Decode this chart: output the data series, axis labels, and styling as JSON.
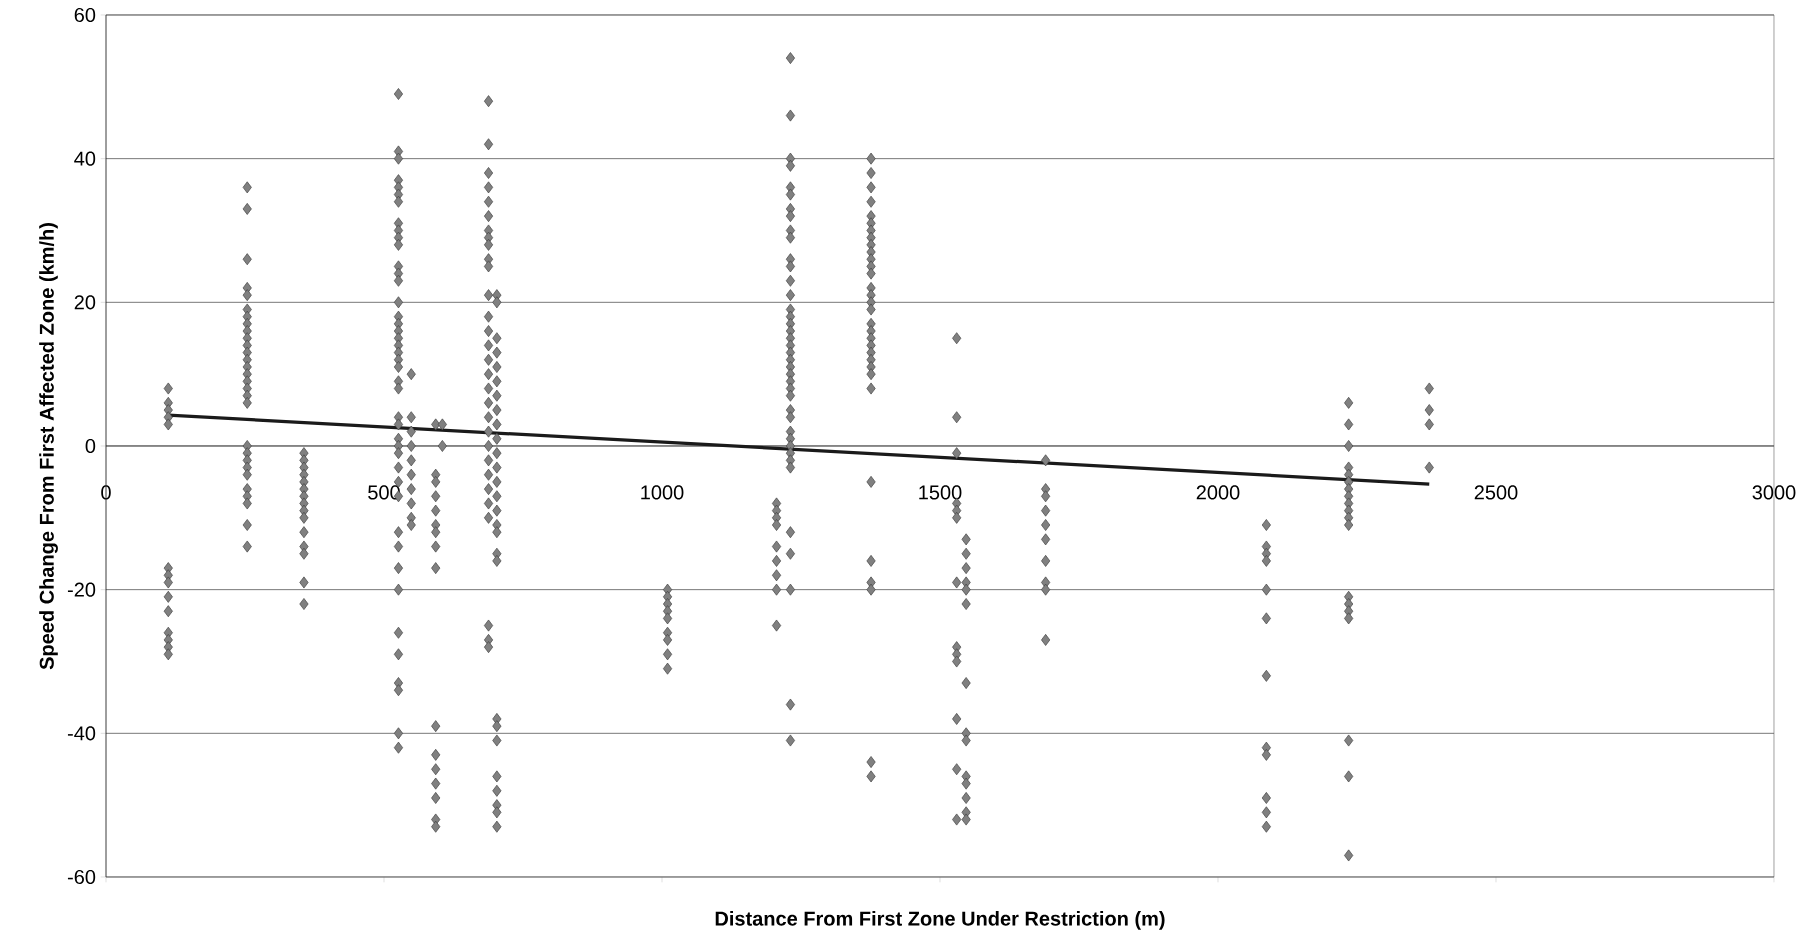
{
  "chart_data": {
    "type": "scatter",
    "xlabel": "Distance From First Zone Under Restriction (m)",
    "ylabel": "Speed Change From First Affected Zone (km/h)",
    "xlim": [
      0,
      3000
    ],
    "ylim": [
      -60,
      60
    ],
    "xticks": [
      0,
      500,
      1000,
      1500,
      2000,
      2500,
      3000
    ],
    "yticks": [
      -60,
      -40,
      -20,
      0,
      20,
      40,
      60
    ],
    "grid": "y",
    "marker": "diamond",
    "series": [
      {
        "color": "#808080",
        "x": [
          112,
          112,
          112,
          112,
          112,
          112,
          112,
          112,
          112,
          112,
          112,
          112,
          112,
          112
        ],
        "values": [
          8,
          6,
          5,
          4,
          3,
          -17,
          -18,
          -19,
          -21,
          -23,
          -26,
          -27,
          -28,
          -29
        ]
      },
      {
        "color": "#808080",
        "x": [
          254,
          254,
          254,
          254,
          254,
          254,
          254,
          254,
          254,
          254,
          254,
          254,
          254,
          254,
          254,
          254,
          254,
          254,
          254,
          254,
          254,
          254,
          254,
          254,
          254,
          254,
          254,
          254,
          254
        ],
        "values": [
          36,
          33,
          26,
          22,
          21,
          19,
          18,
          17,
          16,
          15,
          14,
          13,
          12,
          11,
          10,
          9,
          8,
          7,
          6,
          0,
          -1,
          -2,
          -3,
          -4,
          -6,
          -7,
          -8,
          -11,
          -14
        ]
      },
      {
        "color": "#808080",
        "x": [
          356,
          356,
          356,
          356,
          356,
          356,
          356,
          356,
          356,
          356,
          356,
          356,
          356,
          356,
          356
        ],
        "values": [
          -1,
          -2,
          -3,
          -4,
          -5,
          -6,
          -7,
          -8,
          -9,
          -10,
          -12,
          -14,
          -15,
          -19,
          -22
        ]
      },
      {
        "color": "#808080",
        "x": [
          526,
          526,
          526,
          526,
          526,
          526,
          526,
          526,
          526,
          526,
          526,
          526,
          526,
          526,
          526,
          526,
          526,
          526,
          526,
          526,
          526,
          526,
          526,
          526,
          526,
          526,
          526,
          526,
          526,
          526,
          526,
          526,
          526,
          526,
          526,
          526,
          526,
          526,
          526,
          526,
          526,
          526,
          526
        ],
        "values": [
          49,
          41,
          40,
          37,
          36,
          35,
          34,
          31,
          30,
          29,
          28,
          25,
          24,
          23,
          20,
          18,
          17,
          16,
          15,
          14,
          13,
          12,
          11,
          9,
          8,
          4,
          3,
          1,
          0,
          -1,
          -3,
          -5,
          -7,
          -12,
          -14,
          -17,
          -20,
          -26,
          -29,
          -33,
          -34,
          -40,
          -42
        ]
      },
      {
        "color": "#808080",
        "x": [
          549,
          549,
          549,
          549,
          549,
          549,
          549,
          549,
          549,
          549
        ],
        "values": [
          10,
          4,
          2,
          0,
          -2,
          -4,
          -6,
          -8,
          -10,
          -11
        ]
      },
      {
        "color": "#808080",
        "x": [
          593,
          593,
          593,
          593,
          593,
          593,
          593,
          593,
          593,
          593,
          593,
          593,
          593,
          593,
          593,
          593
        ],
        "values": [
          3,
          -4,
          -5,
          -7,
          -9,
          -11,
          -12,
          -14,
          -17,
          -39,
          -43,
          -45,
          -47,
          -49,
          -52,
          -53
        ]
      },
      {
        "color": "#808080",
        "x": [
          605,
          605
        ],
        "values": [
          3,
          0
        ]
      },
      {
        "color": "#808080",
        "x": [
          688,
          688,
          688,
          688,
          688,
          688,
          688,
          688,
          688,
          688,
          688,
          688,
          688,
          688,
          688,
          688,
          688,
          688,
          688,
          688,
          688,
          688,
          688,
          688,
          688,
          688,
          688,
          688,
          688,
          688
        ],
        "values": [
          48,
          42,
          38,
          36,
          34,
          32,
          30,
          29,
          28,
          26,
          25,
          21,
          18,
          16,
          14,
          12,
          10,
          8,
          6,
          4,
          2,
          0,
          -2,
          -4,
          -6,
          -8,
          -10,
          -25,
          -27,
          -28
        ]
      },
      {
        "color": "#808080",
        "x": [
          703,
          703,
          703,
          703,
          703,
          703,
          703,
          703,
          703,
          703,
          703,
          703,
          703,
          703,
          703,
          703,
          703,
          703,
          703,
          703,
          703,
          703,
          703,
          703,
          703,
          703,
          703
        ],
        "values": [
          21,
          20,
          15,
          13,
          11,
          9,
          7,
          5,
          3,
          1,
          -1,
          -3,
          -5,
          -7,
          -9,
          -11,
          -12,
          -15,
          -16,
          -38,
          -39,
          -41,
          -46,
          -48,
          -50,
          -51,
          -53
        ]
      },
      {
        "color": "#808080",
        "x": [
          1010,
          1010,
          1010,
          1010,
          1010,
          1010,
          1010,
          1010,
          1010
        ],
        "values": [
          -20,
          -21,
          -22,
          -23,
          -24,
          -26,
          -27,
          -29,
          -31
        ]
      },
      {
        "color": "#808080",
        "x": [
          1206,
          1206,
          1206,
          1206,
          1206,
          1206,
          1206,
          1206,
          1206
        ],
        "values": [
          -8,
          -9,
          -10,
          -11,
          -14,
          -16,
          -18,
          -20,
          -25
        ]
      },
      {
        "color": "#808080",
        "x": [
          1231,
          1231,
          1231,
          1231,
          1231,
          1231,
          1231,
          1231,
          1231,
          1231,
          1231,
          1231,
          1231,
          1231,
          1231,
          1231,
          1231,
          1231,
          1231,
          1231,
          1231,
          1231,
          1231,
          1231,
          1231,
          1231,
          1231,
          1231,
          1231,
          1231,
          1231,
          1231,
          1231,
          1231,
          1231,
          1231,
          1231,
          1231,
          1231,
          1231
        ],
        "values": [
          54,
          46,
          40,
          39,
          36,
          35,
          33,
          32,
          30,
          29,
          26,
          25,
          23,
          21,
          19,
          18,
          17,
          16,
          15,
          14,
          13,
          12,
          11,
          10,
          9,
          8,
          7,
          5,
          4,
          2,
          1,
          0,
          -1,
          -2,
          -3,
          -12,
          -15,
          -20,
          -36,
          -41
        ]
      },
      {
        "color": "#808080",
        "x": [
          1376,
          1376,
          1376,
          1376,
          1376,
          1376,
          1376,
          1376,
          1376,
          1376,
          1376,
          1376,
          1376,
          1376,
          1376,
          1376,
          1376,
          1376,
          1376,
          1376,
          1376,
          1376,
          1376,
          1376,
          1376,
          1376,
          1376,
          1376,
          1376,
          1376,
          1376,
          1376
        ],
        "values": [
          40,
          38,
          36,
          34,
          32,
          31,
          30,
          29,
          28,
          27,
          26,
          25,
          24,
          22,
          21,
          20,
          19,
          17,
          16,
          15,
          14,
          13,
          12,
          11,
          10,
          8,
          -5,
          -16,
          -19,
          -20,
          -44,
          -46
        ]
      },
      {
        "color": "#808080",
        "x": [
          1530,
          1530,
          1530,
          1530,
          1530,
          1530,
          1530,
          1530,
          1530,
          1530,
          1530,
          1530,
          1530
        ],
        "values": [
          15,
          4,
          -1,
          -8,
          -9,
          -10,
          -19,
          -28,
          -29,
          -30,
          -38,
          -45,
          -52
        ]
      },
      {
        "color": "#808080",
        "x": [
          1547,
          1547,
          1547,
          1547,
          1547,
          1547,
          1547,
          1547,
          1547,
          1547,
          1547,
          1547,
          1547,
          1547
        ],
        "values": [
          -13,
          -15,
          -17,
          -19,
          -20,
          -22,
          -33,
          -40,
          -41,
          -46,
          -47,
          -49,
          -51,
          -52
        ]
      },
      {
        "color": "#808080",
        "x": [
          1690,
          1690,
          1690,
          1690,
          1690,
          1690,
          1690,
          1690,
          1690,
          1690
        ],
        "values": [
          -2,
          -6,
          -7,
          -9,
          -11,
          -13,
          -16,
          -19,
          -20,
          -27
        ]
      },
      {
        "color": "#808080",
        "x": [
          2087,
          2087,
          2087,
          2087,
          2087,
          2087,
          2087,
          2087,
          2087,
          2087,
          2087,
          2087
        ],
        "values": [
          -11,
          -14,
          -15,
          -16,
          -20,
          -24,
          -32,
          -42,
          -43,
          -49,
          -51,
          -53
        ]
      },
      {
        "color": "#808080",
        "x": [
          2235,
          2235,
          2235,
          2235,
          2235,
          2235,
          2235,
          2235,
          2235,
          2235,
          2235,
          2235,
          2235,
          2235,
          2235,
          2235,
          2235,
          2235,
          2235
        ],
        "values": [
          6,
          3,
          0,
          -3,
          -4,
          -5,
          -6,
          -7,
          -8,
          -9,
          -10,
          -11,
          -21,
          -22,
          -23,
          -24,
          -41,
          -46,
          -57
        ]
      },
      {
        "color": "#808080",
        "x": [
          2380,
          2380,
          2380,
          2380
        ],
        "values": [
          8,
          5,
          3,
          -3
        ]
      },
      {
        "type": "line",
        "marker": "none",
        "color": "#1a1a1a",
        "x": [
          112,
          2380
        ],
        "values": [
          4.3,
          -5.3
        ]
      }
    ]
  }
}
